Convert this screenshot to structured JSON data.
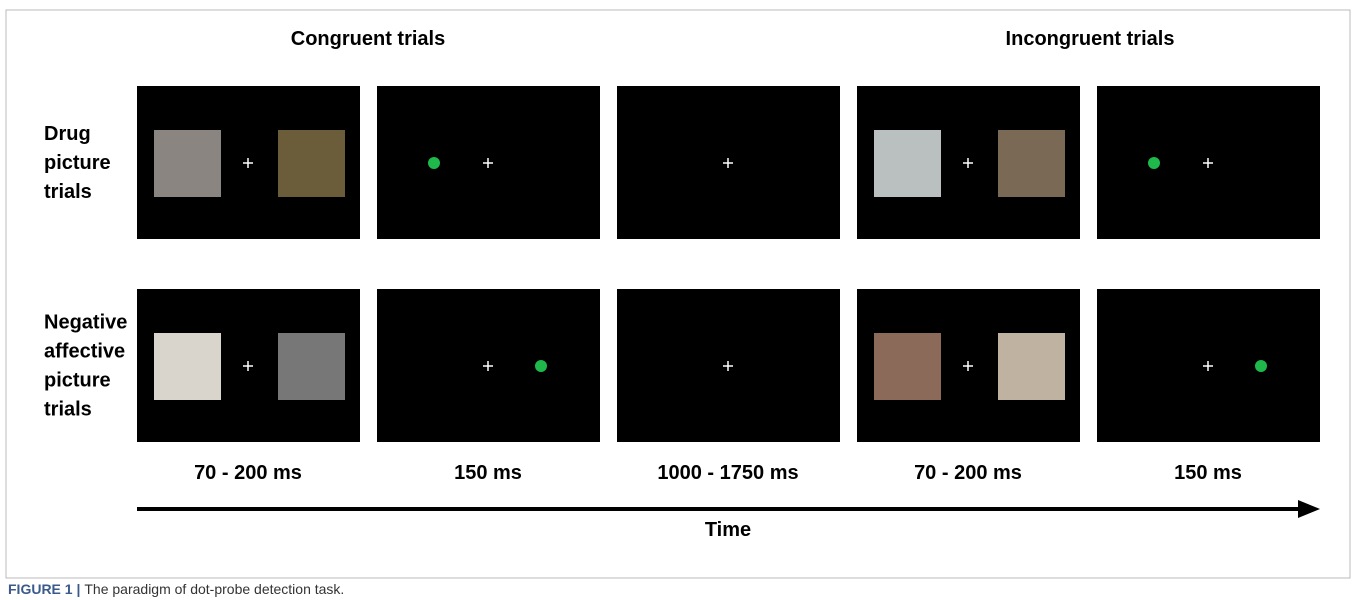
{
  "figure": {
    "column_headers": [
      "Congruent trials",
      "Incongruent trials"
    ],
    "row_labels": [
      [
        "Drug",
        "picture",
        "trials"
      ],
      [
        "Negative",
        "affective",
        "picture",
        "trials"
      ]
    ],
    "durations": [
      "70 - 200 ms",
      "150 ms",
      "1000 - 1750 ms",
      "70 - 200 ms",
      "150 ms"
    ],
    "axis_label": "Time"
  },
  "caption": {
    "label": "FIGURE 1 |",
    "text": "The paradigm of dot-probe detection task."
  }
}
